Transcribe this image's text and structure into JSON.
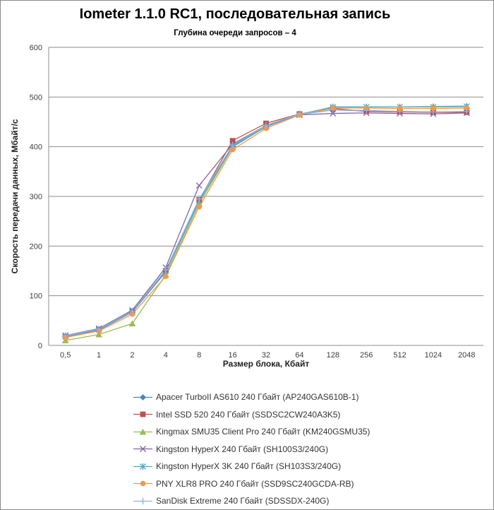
{
  "window": {
    "background": "#FFFFFF",
    "border_color": "#8A8A8A",
    "grid_color": "#8E8E8E",
    "axis_color": "#8E8E8E"
  },
  "chart_data": {
    "type": "line",
    "title": "Iometer 1.1.0 RC1, последовательная запись",
    "subtitle": "Глубина очереди запросов – 4",
    "xlabel": "Размер блока, Кбайт",
    "ylabel": "Скорость передачи данных, Мбайт/с",
    "ylim": [
      0,
      600
    ],
    "ytick_step": 100,
    "grid": "horizontal",
    "legend_position": "bottom",
    "categories": [
      "0,5",
      "1",
      "2",
      "4",
      "8",
      "16",
      "32",
      "64",
      "128",
      "256",
      "512",
      "1024",
      "2048"
    ],
    "series": [
      {
        "name": "Apacer TurboII AS610 240 Гбайт (AP240GAS610B-1)",
        "color": "#4F81BD",
        "marker": "diamond",
        "values": [
          18,
          31,
          67,
          148,
          290,
          401,
          441,
          465,
          474,
          472,
          471,
          470,
          470
        ]
      },
      {
        "name": "Intel SSD 520 240 Гбайт (SSDSC2CW240A3K5)",
        "color": "#C0504D",
        "marker": "square",
        "values": [
          18,
          32,
          68,
          150,
          293,
          412,
          447,
          466,
          477,
          471,
          470,
          469,
          469
        ]
      },
      {
        "name": "Kingmax SMU35 Client Pro 240 Гбайт (KM240GSMU35)",
        "color": "#9BBB59",
        "marker": "triangle",
        "values": [
          10,
          22,
          44,
          142,
          285,
          399,
          441,
          465,
          480,
          480,
          480,
          481,
          482
        ]
      },
      {
        "name": "Kingston HyperX 240 Гбайт (SH100S3/240G)",
        "color": "#8064A2",
        "marker": "x",
        "values": [
          20,
          34,
          71,
          157,
          322,
          405,
          443,
          464,
          467,
          468,
          467,
          466,
          468
        ]
      },
      {
        "name": "Kingston HyperX 3K 240 Гбайт (SH103S3/240G)",
        "color": "#4BACC6",
        "marker": "asterisk",
        "values": [
          18,
          32,
          68,
          150,
          291,
          400,
          440,
          465,
          480,
          480,
          480,
          480,
          481
        ]
      },
      {
        "name": "PNY XLR8 PRO 240 Гбайт (SSD9SC240GCDA-RB)",
        "color": "#F79646",
        "marker": "circle",
        "values": [
          16,
          29,
          63,
          139,
          279,
          394,
          437,
          464,
          478,
          478,
          477,
          477,
          478
        ]
      },
      {
        "name": "SanDisk Extreme 240 Гбайт (SDSSDX-240G)",
        "color": "#95B3D7",
        "marker": "plus",
        "values": [
          20,
          33,
          69,
          152,
          295,
          403,
          443,
          466,
          474,
          473,
          471,
          470,
          471
        ]
      }
    ]
  }
}
